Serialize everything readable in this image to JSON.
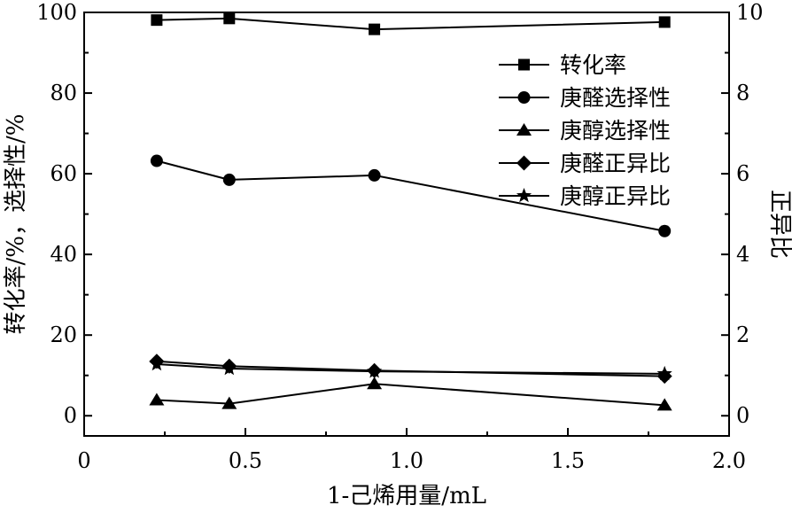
{
  "chart_data": {
    "type": "line",
    "title": "",
    "xlabel": "1-己烯用量/mL",
    "ylabel_left": "转化率/%，选择性/%",
    "ylabel_right": "正异比",
    "xlim": [
      0,
      2.0
    ],
    "ylim_left": [
      -5,
      100
    ],
    "ylim_right": [
      -0.5,
      10
    ],
    "x_ticks": [
      "0",
      "0.5",
      "1.0",
      "1.5",
      "2.0"
    ],
    "x_tick_values": [
      0,
      0.5,
      1.0,
      1.5,
      2.0
    ],
    "y_left_ticks": [
      "0",
      "20",
      "40",
      "60",
      "80",
      "100"
    ],
    "y_left_tick_values": [
      0,
      20,
      40,
      60,
      80,
      100
    ],
    "y_right_ticks": [
      "0",
      "2",
      "4",
      "6",
      "8",
      "10"
    ],
    "y_right_tick_values": [
      0,
      2,
      4,
      6,
      8,
      10
    ],
    "x": [
      0.225,
      0.45,
      0.9,
      1.8
    ],
    "legend_position": "top-right",
    "grid": false,
    "series": [
      {
        "name": "转化率",
        "axis": "left",
        "marker": "square",
        "values": [
          98.1,
          98.5,
          95.8,
          97.6
        ]
      },
      {
        "name": "庚醛选择性",
        "axis": "left",
        "marker": "circle",
        "values": [
          63.2,
          58.5,
          59.6,
          45.8
        ]
      },
      {
        "name": "庚醇选择性",
        "axis": "left",
        "marker": "triangle",
        "values": [
          3.9,
          3.0,
          7.9,
          2.6
        ]
      },
      {
        "name": "庚醛正异比",
        "axis": "right",
        "marker": "diamond",
        "values": [
          1.35,
          1.23,
          1.12,
          0.98
        ]
      },
      {
        "name": "庚醇正异比",
        "axis": "right",
        "marker": "star",
        "values": [
          1.28,
          1.17,
          1.1,
          1.04
        ]
      }
    ]
  }
}
